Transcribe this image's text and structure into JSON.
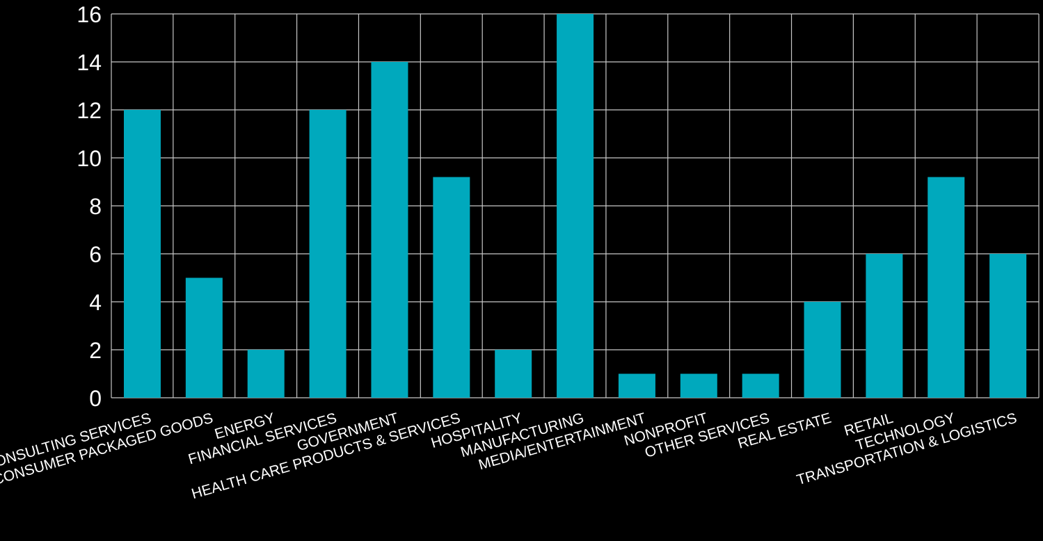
{
  "chart_data": {
    "type": "bar",
    "title": "",
    "xlabel": "",
    "ylabel": "",
    "categories": [
      "CONSULTING SERVICES",
      "CONSUMER PACKAGED GOODS",
      "ENERGY",
      "FINANCIAL SERVICES",
      "GOVERNMENT",
      "HEALTH CARE PRODUCTS & SERVICES",
      "HOSPITALITY",
      "MANUFACTURING",
      "MEDIA/ENTERTAINMENT",
      "NONPROFIT",
      "OTHER SERVICES",
      "REAL ESTATE",
      "RETAIL",
      "TECHNOLOGY",
      "TRANSPORTATION & LOGISTICS"
    ],
    "values": [
      12,
      5,
      2,
      12,
      14,
      9.2,
      2,
      16,
      1,
      1,
      1,
      4,
      6,
      9.2,
      6
    ],
    "ylim": [
      0,
      16
    ],
    "yticks": [
      0,
      2,
      4,
      6,
      8,
      10,
      12,
      14,
      16
    ],
    "grid": true,
    "legend": "none",
    "colors": {
      "bar": "#00a9bd",
      "background": "#000000",
      "grid": "#c8c8c8",
      "text": "#ffffff"
    }
  }
}
